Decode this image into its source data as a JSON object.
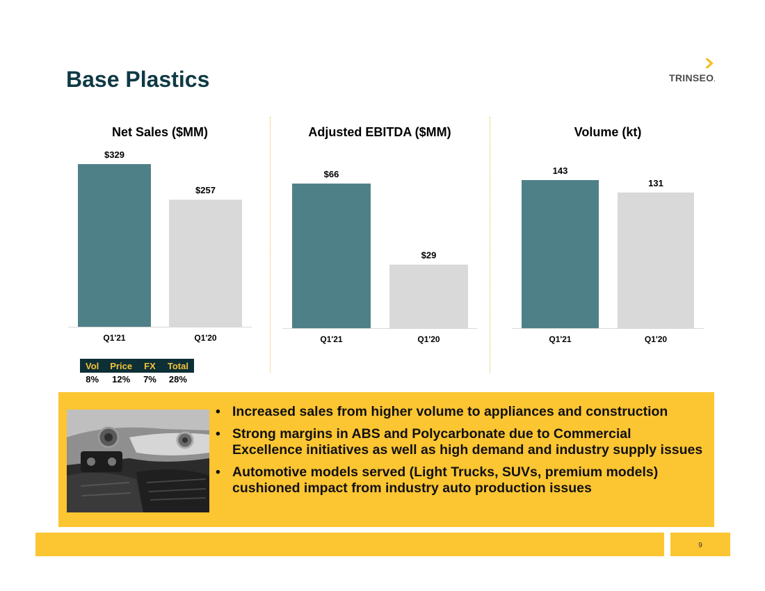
{
  "slide": {
    "title": "Base Plastics",
    "logo_text": "TRINSEO",
    "logo_mark": ".",
    "page_number": "9"
  },
  "colors": {
    "title": "#0f3a45",
    "current_bar": "#4e8187",
    "prior_bar": "#d9d9d9",
    "accent_yellow": "#fcc532",
    "table_header_bg": "#0d2f36",
    "table_header_text": "#f5c33b"
  },
  "chart_data": [
    {
      "type": "bar",
      "title": "Net Sales ($MM)",
      "categories": [
        "Q1'21",
        "Q1'20"
      ],
      "values": [
        329,
        257
      ],
      "labels": [
        "$329",
        "$257"
      ],
      "ylim": [
        0,
        329
      ]
    },
    {
      "type": "bar",
      "title": "Adjusted EBITDA ($MM)",
      "categories": [
        "Q1'21",
        "Q1'20"
      ],
      "values": [
        66,
        29
      ],
      "labels": [
        "$66",
        "$29"
      ],
      "ylim": [
        0,
        66
      ]
    },
    {
      "type": "bar",
      "title": "Volume (kt)",
      "categories": [
        "Q1'21",
        "Q1'20"
      ],
      "values": [
        143,
        131
      ],
      "labels": [
        "143",
        "131"
      ],
      "ylim": [
        0,
        143
      ]
    }
  ],
  "bridge_table": {
    "headers": [
      "Vol",
      "Price",
      "FX",
      "Total"
    ],
    "values": [
      "8%",
      "12%",
      "7%",
      "28%"
    ]
  },
  "bullets": [
    "Increased sales from higher volume to appliances and construction",
    "Strong margins in ABS and Polycarbonate due to Commercial Excellence initiatives as well as high demand and industry supply issues",
    "Automotive models served (Light Trucks, SUVs, premium models) cushioned impact from industry auto production issues"
  ]
}
